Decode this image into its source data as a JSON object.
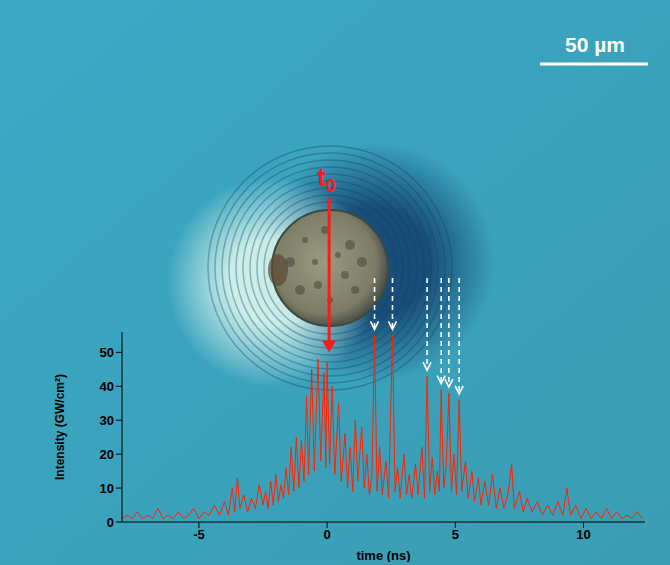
{
  "chart_data": {
    "type": "line",
    "x": [
      -8,
      -7.8,
      -7.6,
      -7.4,
      -7.2,
      -7,
      -6.8,
      -6.6,
      -6.4,
      -6.2,
      -6,
      -5.8,
      -5.6,
      -5.4,
      -5.2,
      -5,
      -4.8,
      -4.6,
      -4.4,
      -4.2,
      -4,
      -3.85,
      -3.7,
      -3.6,
      -3.5,
      -3.4,
      -3.25,
      -3.1,
      -2.95,
      -2.8,
      -2.65,
      -2.5,
      -2.4,
      -2.3,
      -2.2,
      -2.1,
      -2,
      -1.9,
      -1.8,
      -1.7,
      -1.6,
      -1.5,
      -1.4,
      -1.3,
      -1.2,
      -1.1,
      -1,
      -0.9,
      -0.8,
      -0.72,
      -0.6,
      -0.5,
      -0.35,
      -0.25,
      -0.12,
      -0.05,
      0,
      0.1,
      0.2,
      0.3,
      0.45,
      0.55,
      0.7,
      0.8,
      0.9,
      1,
      1.1,
      1.2,
      1.35,
      1.45,
      1.55,
      1.65,
      1.75,
      1.85,
      1.95,
      2.05,
      2.15,
      2.3,
      2.4,
      2.55,
      2.65,
      2.75,
      2.85,
      3,
      3.1,
      3.2,
      3.3,
      3.45,
      3.55,
      3.7,
      3.8,
      3.9,
      4,
      4.1,
      4.2,
      4.3,
      4.38,
      4.45,
      4.55,
      4.65,
      4.75,
      4.85,
      4.95,
      5.05,
      5.15,
      5.25,
      5.4,
      5.5,
      5.65,
      5.75,
      5.9,
      6,
      6.15,
      6.3,
      6.45,
      6.6,
      6.75,
      6.9,
      7.05,
      7.2,
      7.3,
      7.5,
      7.65,
      7.8,
      8,
      8.2,
      8.4,
      8.6,
      8.8,
      9,
      9.2,
      9.35,
      9.5,
      9.7,
      9.9,
      10.1,
      10.3,
      10.5,
      10.7,
      10.9,
      11.1,
      11.3,
      11.5,
      11.7,
      11.9,
      12.1,
      12.3
    ],
    "values": [
      1,
      2,
      1,
      3,
      1,
      2,
      1,
      4,
      1,
      2,
      1,
      3,
      1,
      2,
      4,
      1,
      3,
      2,
      5,
      2,
      6,
      2,
      10,
      3,
      13,
      4,
      8,
      3,
      7,
      4,
      11,
      5,
      9,
      4,
      12,
      5,
      14,
      6,
      11,
      7,
      16,
      8,
      22,
      9,
      25,
      10,
      24,
      12,
      37,
      14,
      45,
      15,
      48,
      18,
      44,
      16,
      47,
      17,
      40,
      14,
      35,
      12,
      26,
      10,
      22,
      9,
      30,
      12,
      28,
      10,
      20,
      8,
      14,
      55,
      9,
      22,
      8,
      18,
      7,
      55,
      9,
      16,
      7,
      20,
      8,
      14,
      7,
      17,
      8,
      22,
      7,
      43,
      9,
      19,
      8,
      15,
      9,
      39,
      10,
      17,
      38,
      9,
      20,
      8,
      36,
      9,
      18,
      7,
      15,
      6,
      13,
      5,
      12,
      5,
      14,
      4,
      10,
      4,
      8,
      17,
      4,
      9,
      3,
      7,
      3,
      6,
      2,
      5,
      2,
      6,
      2,
      10,
      2,
      5,
      1,
      4,
      1,
      3,
      1,
      4,
      1,
      3,
      1,
      2,
      1,
      3,
      1
    ],
    "color": "#ff2200",
    "xlabel": "time (ns)",
    "ylabel": "Intensity (GW/cm²)",
    "xlim": [
      -8,
      12.4
    ],
    "xticks": [
      -5,
      0,
      5,
      10
    ],
    "ylim": [
      0,
      56
    ],
    "yticks": [
      0,
      10,
      20,
      30,
      40,
      50
    ],
    "grid": false,
    "annotations": [
      {
        "text": "t0",
        "x": 0,
        "color": "#ff1a1a"
      }
    ],
    "arrows": {
      "x": [
        1.85,
        2.55,
        3.9,
        4.45,
        4.75,
        5.15
      ],
      "color": "#ffffff",
      "line_style": "dashed"
    },
    "scale_bar": {
      "label": "50 µm"
    }
  }
}
